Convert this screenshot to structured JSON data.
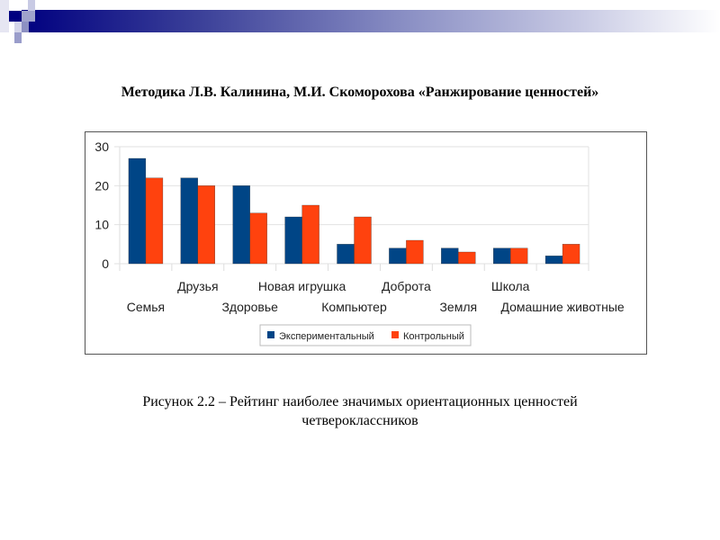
{
  "slide": {
    "title": "Методика Л.В. Калинина, М.И. Скоморохова «Ранжирование ценностей»",
    "caption_line1": "Рисунок 2.2 – Рейтинг наиболее значимых ориентационных ценностей",
    "caption_line2": "четвероклассников"
  },
  "colors": {
    "band": "#000080",
    "series1": "#004586",
    "series2": "#ff420e"
  },
  "chart_data": {
    "type": "bar",
    "categories": [
      "Семья",
      "Друзья",
      "Здоровье",
      "Новая игрушка",
      "Компьютер",
      "Доброта",
      "Земля",
      "Школа",
      "Домашние животные"
    ],
    "series": [
      {
        "name": "Экспериментальный",
        "values": [
          27,
          22,
          20,
          12,
          5,
          4,
          4,
          4,
          2
        ]
      },
      {
        "name": "Контрольный",
        "values": [
          22,
          20,
          13,
          15,
          12,
          6,
          3,
          4,
          5
        ]
      }
    ],
    "yticks": [
      0,
      10,
      20,
      30
    ],
    "ylim": [
      0,
      30
    ],
    "grid": true,
    "legend": "bottom-center",
    "title": "",
    "xlabel": "",
    "ylabel": ""
  }
}
